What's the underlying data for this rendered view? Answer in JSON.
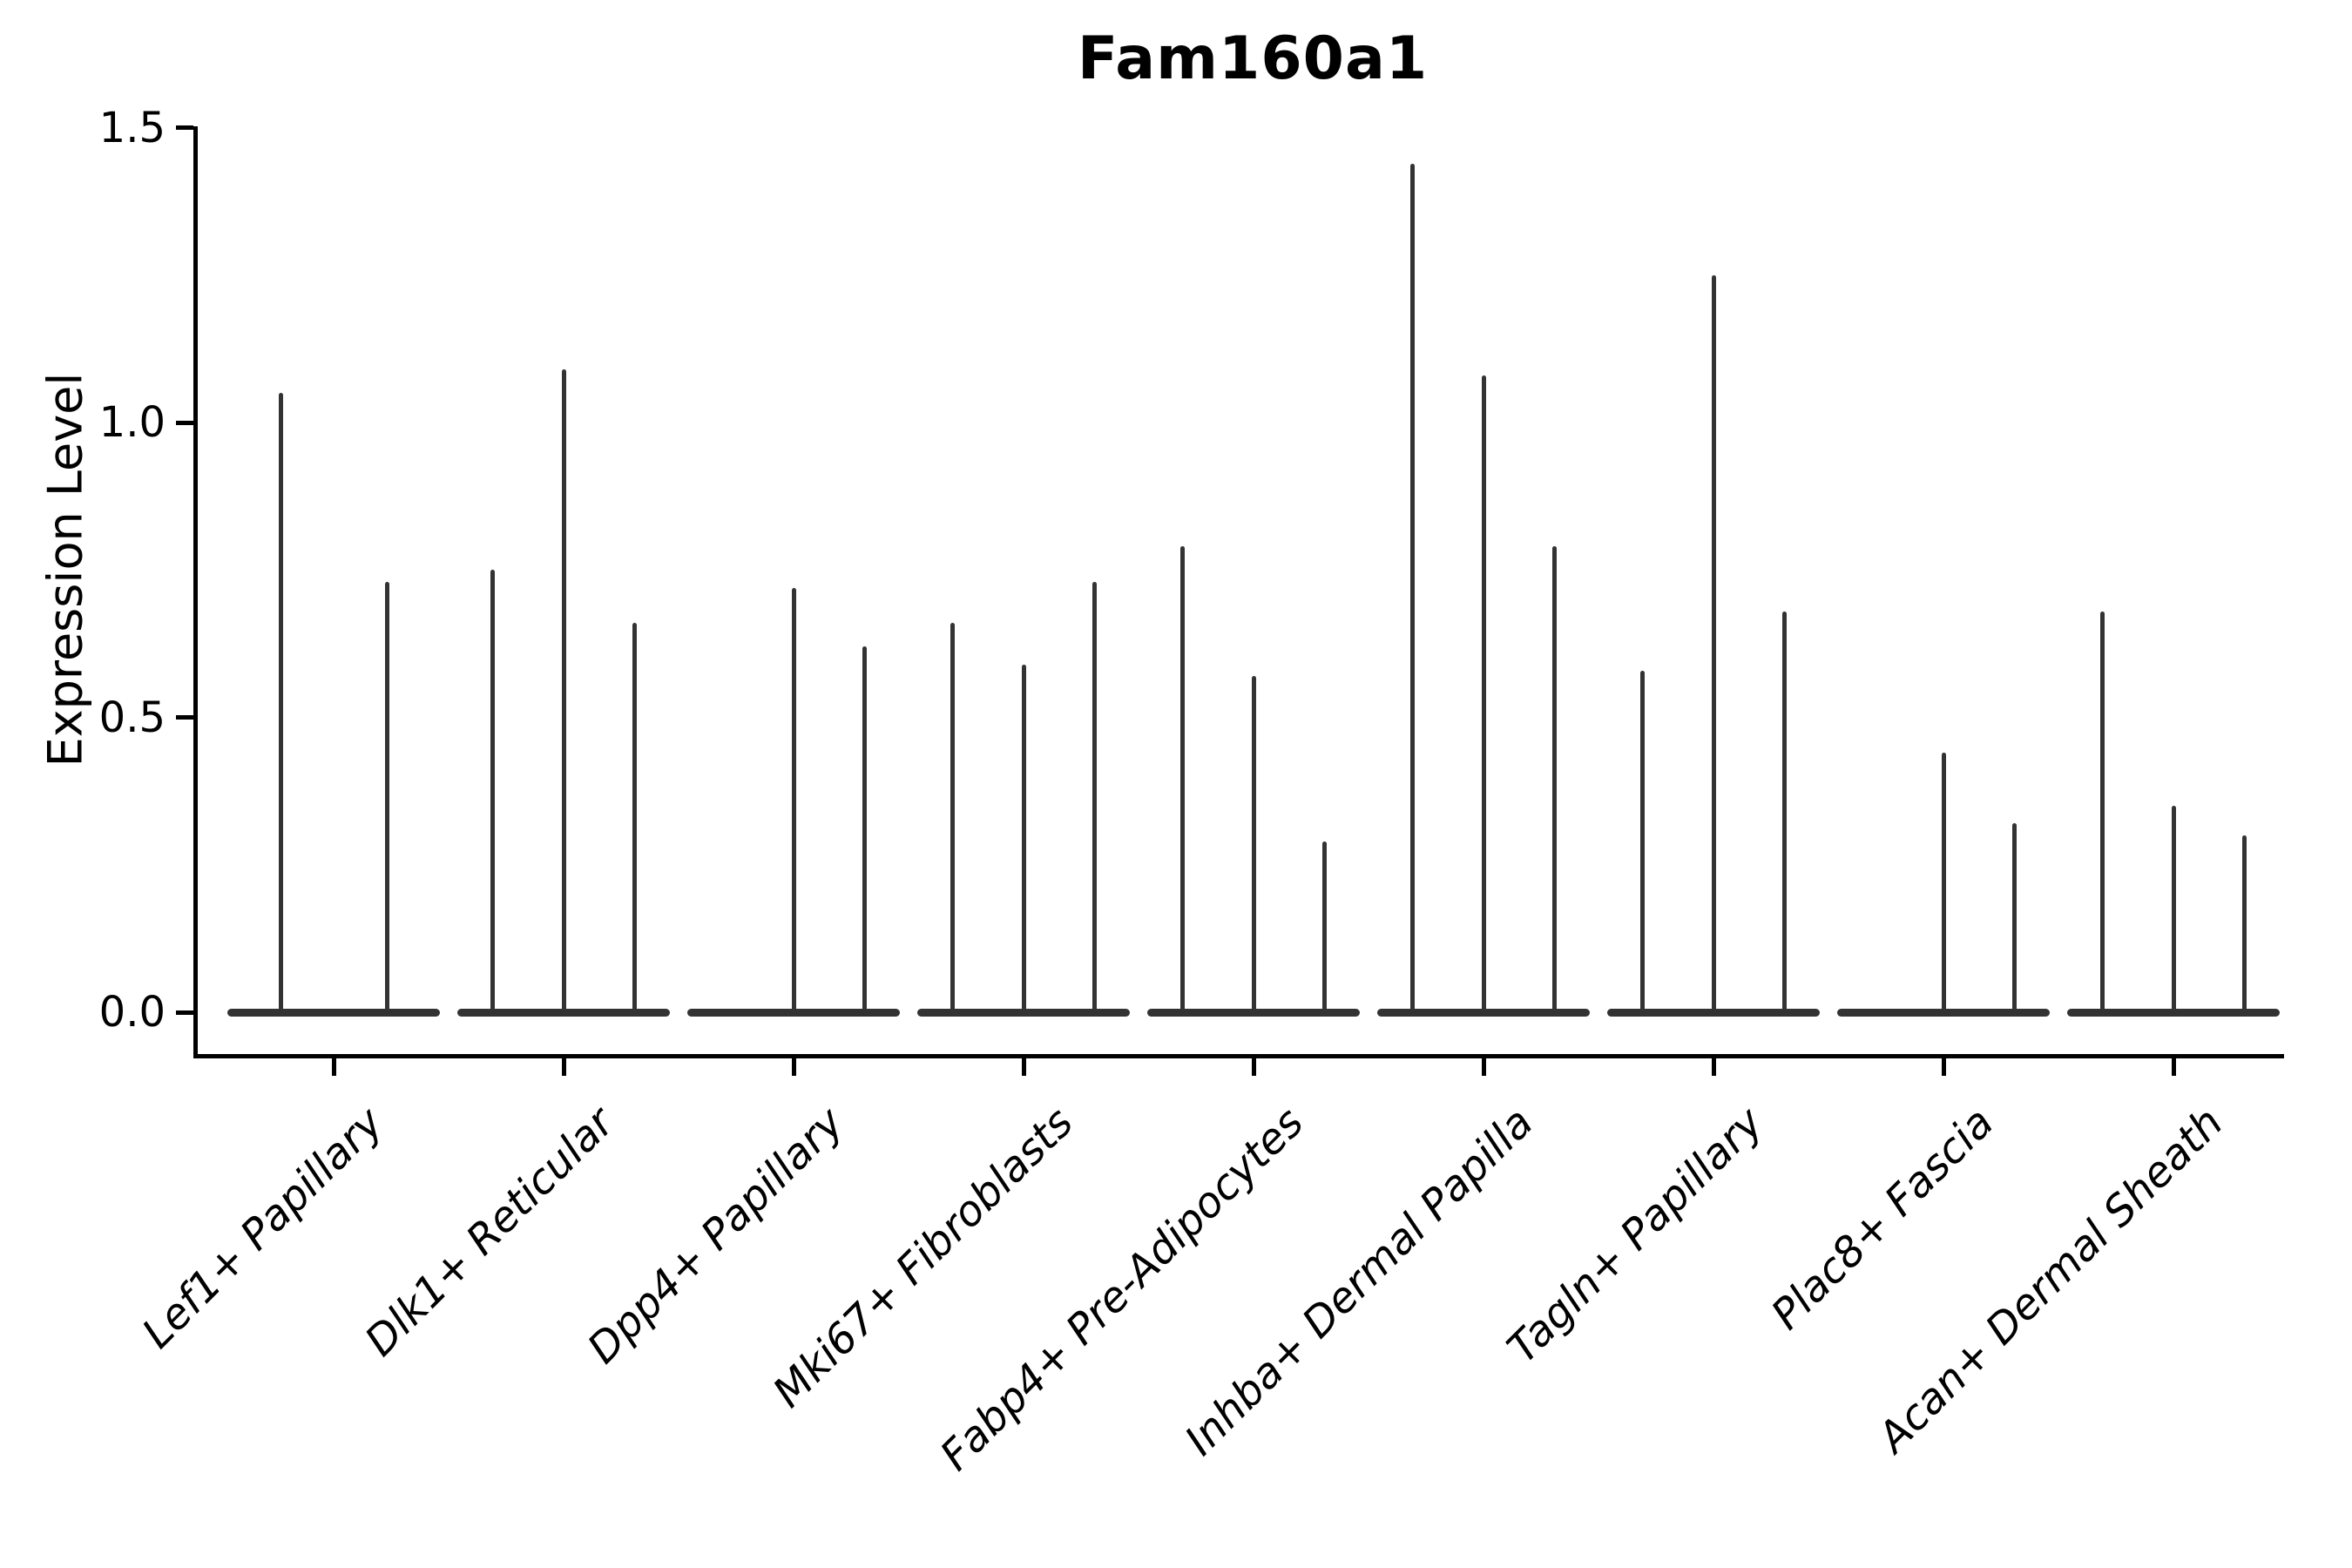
{
  "chart_data": {
    "type": "violin",
    "title": "Fam160a1",
    "ylabel": "Expression Level",
    "xlabel": "",
    "ylim": [
      0.0,
      1.5
    ],
    "ytick_labels": [
      "0.0",
      "0.5",
      "1.0",
      "1.5"
    ],
    "ytick_values": [
      0.0,
      0.5,
      1.0,
      1.5
    ],
    "grid": false,
    "legend": null,
    "violin_color": "#333333",
    "axis_color": "#000000",
    "background_color": "#ffffff",
    "description": "Collapsed violins at 0 with thin spikes rising to each violin's maximum expression value",
    "categories": [
      "Lef1+ Papillary",
      "Dlk1+ Reticular",
      "Dpp4+ Papillary",
      "Mki67+ Fibroblasts",
      "Fabp4+ Pre-Adipocytes",
      "Inhba+ Dermal Papilla",
      "Tagln+ Papillary",
      "Plac8+ Fascia",
      "Acan+ Dermal Sheath"
    ],
    "groups": [
      {
        "label": "Lef1+ Papillary",
        "violin_max_values": [
          1.05,
          0.73
        ]
      },
      {
        "label": "Dlk1+ Reticular",
        "violin_max_values": [
          0.75,
          1.09,
          0.66
        ]
      },
      {
        "label": "Dpp4+ Papillary",
        "violin_max_values": [
          0.0,
          0.72,
          0.62
        ]
      },
      {
        "label": "Mki67+ Fibroblasts",
        "violin_max_values": [
          0.66,
          0.59,
          0.73
        ]
      },
      {
        "label": "Fabp4+ Pre-Adipocytes",
        "violin_max_values": [
          0.79,
          0.57,
          0.29
        ]
      },
      {
        "label": "Inhba+ Dermal Papilla",
        "violin_max_values": [
          1.44,
          1.08,
          0.79
        ]
      },
      {
        "label": "Tagln+ Papillary",
        "violin_max_values": [
          0.58,
          1.25,
          0.68
        ]
      },
      {
        "label": "Plac8+ Fascia",
        "violin_max_values": [
          0.0,
          0.44,
          0.32
        ]
      },
      {
        "label": "Acan+ Dermal Sheath",
        "violin_max_values": [
          0.68,
          0.35,
          0.3
        ]
      }
    ]
  }
}
